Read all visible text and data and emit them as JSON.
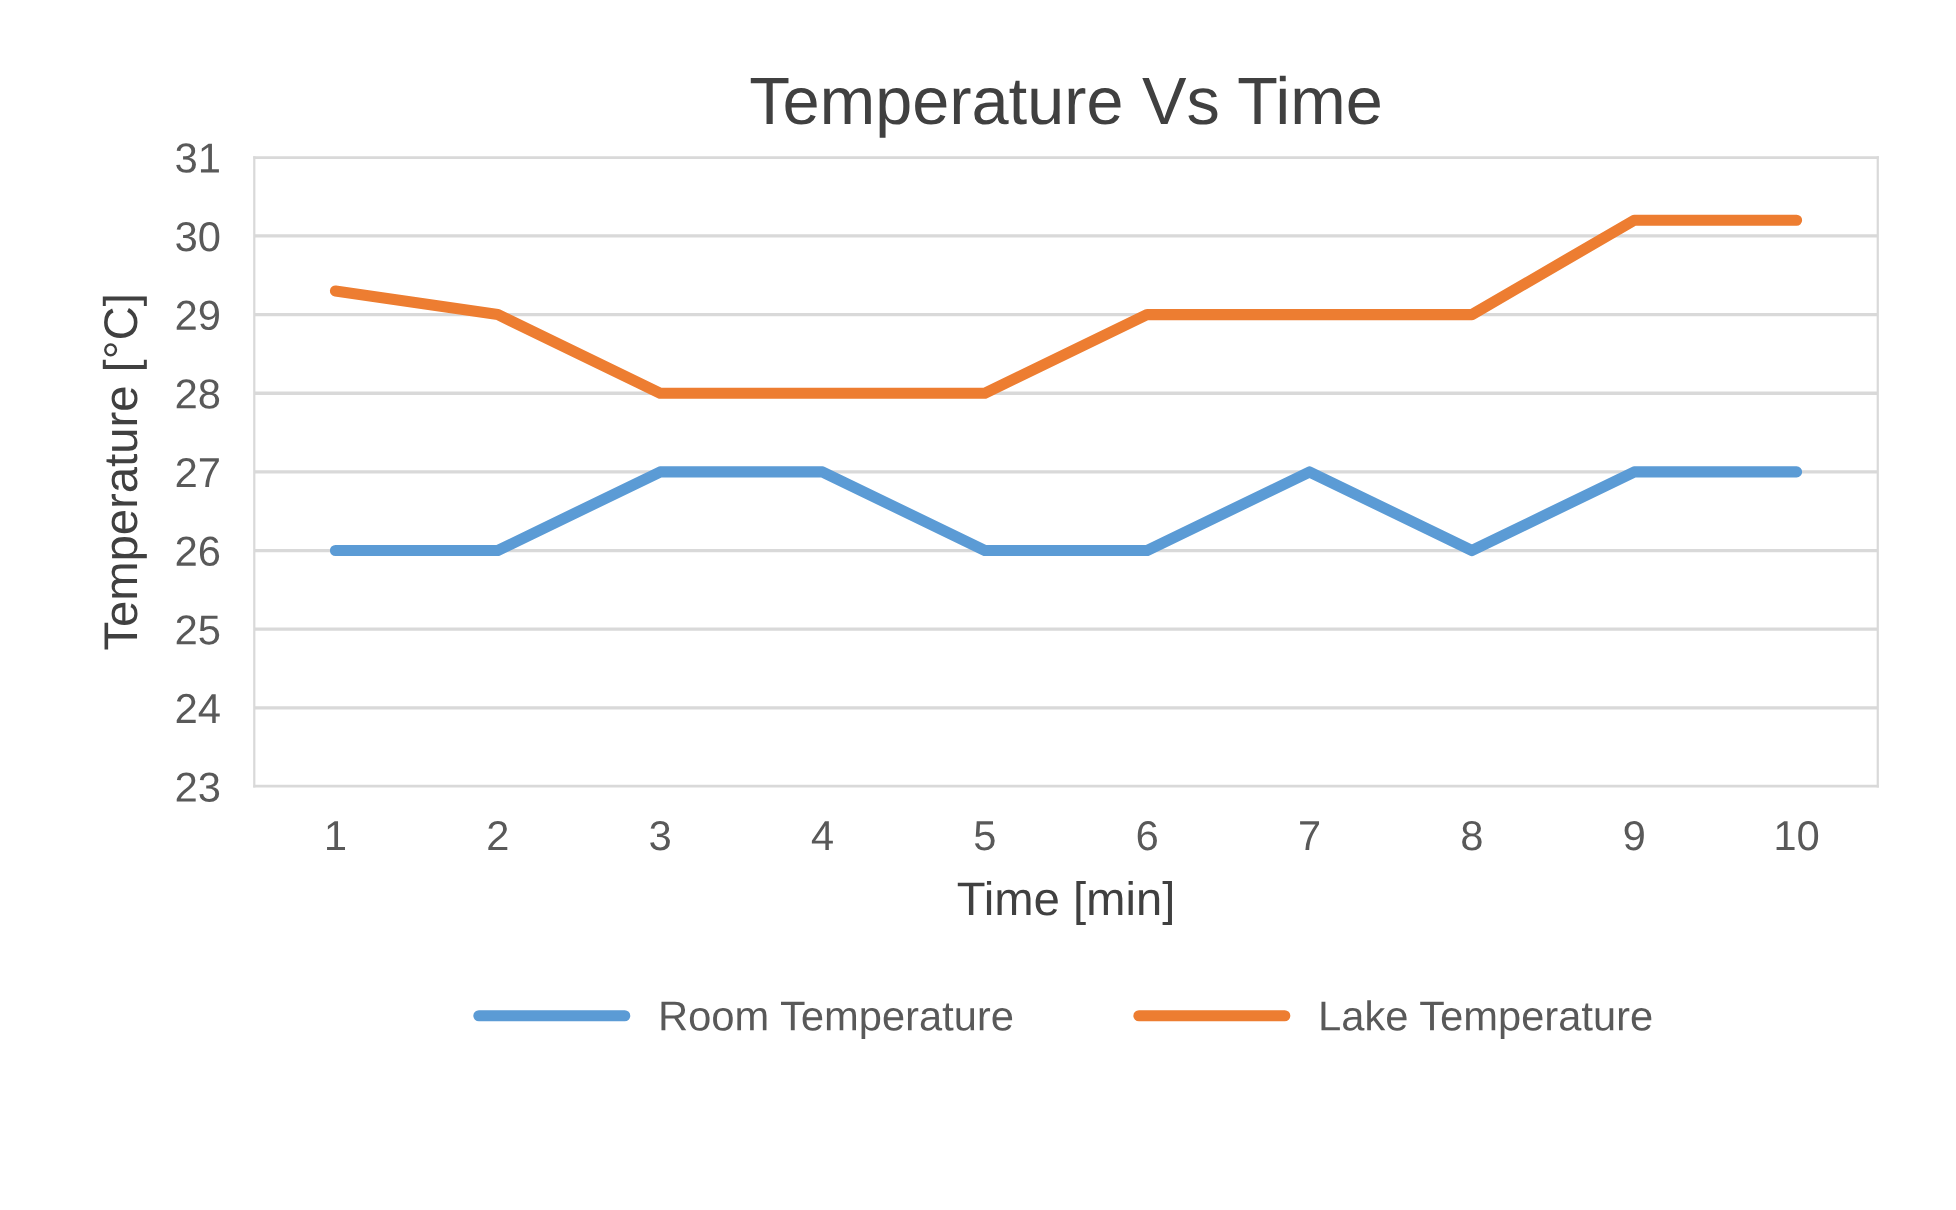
{
  "chart_data": {
    "type": "line",
    "title": "Temperature Vs Time",
    "xlabel": "Time [min]",
    "ylabel": "Temperature [°C]",
    "categories": [
      "1",
      "2",
      "3",
      "4",
      "5",
      "6",
      "7",
      "8",
      "9",
      "10"
    ],
    "series": [
      {
        "name": "Room Temperature",
        "color": "#5b9bd5",
        "values": [
          26,
          26,
          27,
          27,
          26,
          26,
          27,
          26,
          27,
          27
        ]
      },
      {
        "name": "Lake Temperature",
        "color": "#ed7d31",
        "values": [
          29.3,
          29,
          28,
          28,
          28,
          29,
          29,
          29,
          30.2,
          30.2
        ]
      }
    ],
    "ylim": [
      23,
      31
    ],
    "yticks": [
      23,
      24,
      25,
      26,
      27,
      28,
      29,
      30,
      31
    ],
    "grid": "y",
    "legend": "bottom",
    "marker": "none",
    "line_style": "solid"
  }
}
